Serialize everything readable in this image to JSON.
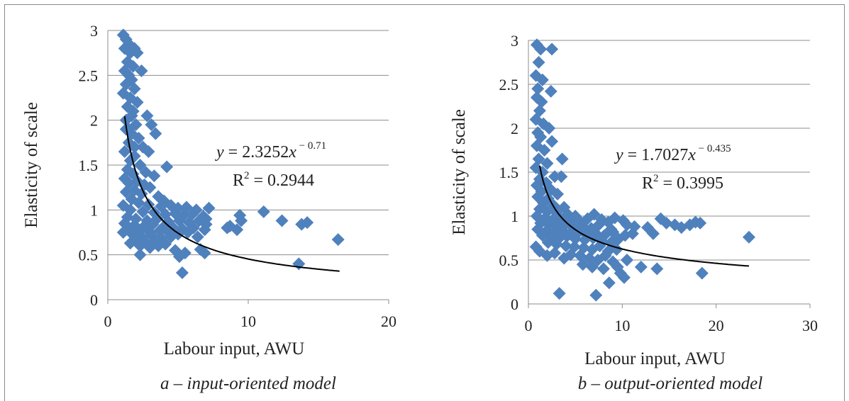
{
  "chart_data": [
    {
      "type": "scatter",
      "caption": "a – input-oriented model",
      "xlabel": "Labour input, AWU",
      "ylabel": "Elasticity of scale",
      "xlim": [
        0,
        20
      ],
      "ylim": [
        0,
        3
      ],
      "xticks": [
        "0",
        "10",
        "20"
      ],
      "yticks": [
        "0",
        "0.5",
        "1",
        "1.5",
        "2",
        "2.5",
        "3"
      ],
      "grid": "horizontal",
      "marker_color": "#4f81bd",
      "trendline": {
        "type": "power",
        "coefficient": 2.3252,
        "exponent": -0.71,
        "x_range": [
          1.2,
          16.5
        ],
        "equation_text": "y = 2.3252x",
        "equation_exponent": "− 0.71",
        "r2_text": "R",
        "r2_value": " = 0.2944"
      },
      "points": [
        [
          1.1,
          2.95
        ],
        [
          1.3,
          2.9
        ],
        [
          1.5,
          2.85
        ],
        [
          1.2,
          2.8
        ],
        [
          1.6,
          2.75
        ],
        [
          1.9,
          2.8
        ],
        [
          2.1,
          2.75
        ],
        [
          1.4,
          2.65
        ],
        [
          1.8,
          2.6
        ],
        [
          1.2,
          2.55
        ],
        [
          1.5,
          2.5
        ],
        [
          2.4,
          2.55
        ],
        [
          1.7,
          2.45
        ],
        [
          1.3,
          2.4
        ],
        [
          1.9,
          2.35
        ],
        [
          1.1,
          2.3
        ],
        [
          1.6,
          2.25
        ],
        [
          2.1,
          2.2
        ],
        [
          1.4,
          2.15
        ],
        [
          1.8,
          2.1
        ],
        [
          2.8,
          2.05
        ],
        [
          3.1,
          1.95
        ],
        [
          3.4,
          1.85
        ],
        [
          1.3,
          1.9
        ],
        [
          1.7,
          1.85
        ],
        [
          2.2,
          1.8
        ],
        [
          1.5,
          1.75
        ],
        [
          2.5,
          1.7
        ],
        [
          1.2,
          1.65
        ],
        [
          1.9,
          1.6
        ],
        [
          2.9,
          1.65
        ],
        [
          1.6,
          1.55
        ],
        [
          2.3,
          1.5
        ],
        [
          4.2,
          1.48
        ],
        [
          1.4,
          1.45
        ],
        [
          2.7,
          1.42
        ],
        [
          1.8,
          1.4
        ],
        [
          3.3,
          1.38
        ],
        [
          1.2,
          1.35
        ],
        [
          2.1,
          1.32
        ],
        [
          1.5,
          1.3
        ],
        [
          2.6,
          1.28
        ],
        [
          3.0,
          1.25
        ],
        [
          1.9,
          1.22
        ],
        [
          1.3,
          1.2
        ],
        [
          2.4,
          1.18
        ],
        [
          3.6,
          1.15
        ],
        [
          1.7,
          1.12
        ],
        [
          4.0,
          1.1
        ],
        [
          2.2,
          1.08
        ],
        [
          1.1,
          1.05
        ],
        [
          2.9,
          1.06
        ],
        [
          3.8,
          1.04
        ],
        [
          4.5,
          1.05
        ],
        [
          5.0,
          1.02
        ],
        [
          5.6,
          1.03
        ],
        [
          6.3,
          1.0
        ],
        [
          7.2,
          1.02
        ],
        [
          1.6,
          1.0
        ],
        [
          2.5,
          0.98
        ],
        [
          3.3,
          0.97
        ],
        [
          4.1,
          0.95
        ],
        [
          4.8,
          0.96
        ],
        [
          5.4,
          0.94
        ],
        [
          6.0,
          0.95
        ],
        [
          6.8,
          0.93
        ],
        [
          1.4,
          0.92
        ],
        [
          2.0,
          0.9
        ],
        [
          2.8,
          0.88
        ],
        [
          3.5,
          0.9
        ],
        [
          4.3,
          0.87
        ],
        [
          5.1,
          0.88
        ],
        [
          5.8,
          0.86
        ],
        [
          6.5,
          0.88
        ],
        [
          7.0,
          0.84
        ],
        [
          1.2,
          0.85
        ],
        [
          1.9,
          0.83
        ],
        [
          2.6,
          0.82
        ],
        [
          3.2,
          0.84
        ],
        [
          3.9,
          0.8
        ],
        [
          4.6,
          0.81
        ],
        [
          5.3,
          0.79
        ],
        [
          6.1,
          0.8
        ],
        [
          6.9,
          0.78
        ],
        [
          1.5,
          0.78
        ],
        [
          2.2,
          0.76
        ],
        [
          3.0,
          0.75
        ],
        [
          3.7,
          0.77
        ],
        [
          4.4,
          0.74
        ],
        [
          5.0,
          0.73
        ],
        [
          5.7,
          0.75
        ],
        [
          1.1,
          0.75
        ],
        [
          1.8,
          0.72
        ],
        [
          2.4,
          0.7
        ],
        [
          3.1,
          0.72
        ],
        [
          3.8,
          0.69
        ],
        [
          4.5,
          0.7
        ],
        [
          2.0,
          0.66
        ],
        [
          2.7,
          0.64
        ],
        [
          3.4,
          0.65
        ],
        [
          4.1,
          0.62
        ],
        [
          1.6,
          0.63
        ],
        [
          2.3,
          0.6
        ],
        [
          3.0,
          0.58
        ],
        [
          3.6,
          0.6
        ],
        [
          4.8,
          0.55
        ],
        [
          5.5,
          0.52
        ],
        [
          6.6,
          0.56
        ],
        [
          2.3,
          0.5
        ],
        [
          5.1,
          0.48
        ],
        [
          6.9,
          0.52
        ],
        [
          8.7,
          0.82
        ],
        [
          9.4,
          0.94
        ],
        [
          9.2,
          0.78
        ],
        [
          9.5,
          0.88
        ],
        [
          11.1,
          0.98
        ],
        [
          12.4,
          0.88
        ],
        [
          13.8,
          0.84
        ],
        [
          14.2,
          0.86
        ],
        [
          13.6,
          0.4
        ],
        [
          16.4,
          0.67
        ],
        [
          5.3,
          0.3
        ],
        [
          7.0,
          0.9
        ],
        [
          6.4,
          0.7
        ],
        [
          8.5,
          0.8
        ],
        [
          1.3,
          2.0
        ],
        [
          1.7,
          2.05
        ],
        [
          2.0,
          1.95
        ],
        [
          1.5,
          1.9
        ],
        [
          1.9,
          1.7
        ]
      ]
    },
    {
      "type": "scatter",
      "caption": "b – output-oriented model",
      "xlabel": "Labour input, AWU",
      "ylabel": "Elasticity of scale",
      "xlim": [
        0,
        30
      ],
      "ylim": [
        0,
        3
      ],
      "xticks": [
        "0",
        "10",
        "20",
        "30"
      ],
      "yticks": [
        "0",
        "0.5",
        "1",
        "1.5",
        "2",
        "2.5",
        "3"
      ],
      "grid": "horizontal",
      "marker_color": "#4f81bd",
      "trendline": {
        "type": "power",
        "coefficient": 1.7027,
        "exponent": -0.435,
        "x_range": [
          1.2,
          23.5
        ],
        "equation_text": "y = 1.7027x",
        "equation_exponent": "− 0.435",
        "r2_text": "R",
        "r2_value": " = 0.3995"
      },
      "points": [
        [
          0.9,
          2.95
        ],
        [
          1.3,
          2.9
        ],
        [
          2.5,
          2.9
        ],
        [
          1.1,
          2.75
        ],
        [
          0.8,
          2.6
        ],
        [
          1.5,
          2.55
        ],
        [
          1.0,
          2.45
        ],
        [
          2.4,
          2.42
        ],
        [
          0.9,
          2.35
        ],
        [
          1.4,
          2.3
        ],
        [
          1.2,
          2.2
        ],
        [
          0.8,
          2.1
        ],
        [
          1.6,
          2.05
        ],
        [
          2.2,
          2.0
        ],
        [
          1.0,
          1.95
        ],
        [
          1.3,
          1.9
        ],
        [
          2.5,
          1.85
        ],
        [
          0.9,
          1.8
        ],
        [
          1.7,
          1.75
        ],
        [
          3.6,
          1.65
        ],
        [
          1.1,
          1.65
        ],
        [
          2.0,
          1.6
        ],
        [
          0.8,
          1.55
        ],
        [
          1.5,
          1.5
        ],
        [
          2.8,
          1.45
        ],
        [
          1.2,
          1.42
        ],
        [
          3.5,
          1.45
        ],
        [
          1.9,
          1.38
        ],
        [
          0.9,
          1.35
        ],
        [
          2.4,
          1.3
        ],
        [
          1.4,
          1.28
        ],
        [
          3.1,
          1.25
        ],
        [
          1.0,
          1.22
        ],
        [
          2.1,
          1.2
        ],
        [
          1.6,
          1.15
        ],
        [
          2.7,
          1.12
        ],
        [
          3.8,
          1.1
        ],
        [
          1.2,
          1.08
        ],
        [
          2.0,
          1.05
        ],
        [
          3.0,
          1.04
        ],
        [
          4.2,
          1.02
        ],
        [
          5.0,
          1.0
        ],
        [
          0.9,
          1.0
        ],
        [
          1.8,
          0.98
        ],
        [
          2.6,
          0.96
        ],
        [
          3.4,
          0.97
        ],
        [
          4.5,
          0.95
        ],
        [
          5.5,
          0.94
        ],
        [
          6.3,
          0.97
        ],
        [
          7.0,
          1.02
        ],
        [
          7.8,
          0.96
        ],
        [
          8.5,
          0.93
        ],
        [
          9.2,
          0.98
        ],
        [
          10.1,
          0.95
        ],
        [
          1.3,
          0.92
        ],
        [
          2.2,
          0.9
        ],
        [
          3.1,
          0.88
        ],
        [
          3.9,
          0.9
        ],
        [
          4.8,
          0.87
        ],
        [
          5.8,
          0.88
        ],
        [
          6.7,
          0.86
        ],
        [
          7.5,
          0.9
        ],
        [
          8.8,
          0.85
        ],
        [
          10.5,
          0.9
        ],
        [
          1.0,
          0.85
        ],
        [
          1.9,
          0.83
        ],
        [
          2.8,
          0.82
        ],
        [
          3.6,
          0.84
        ],
        [
          4.4,
          0.8
        ],
        [
          5.3,
          0.81
        ],
        [
          6.2,
          0.79
        ],
        [
          7.2,
          0.8
        ],
        [
          8.1,
          0.78
        ],
        [
          9.0,
          0.82
        ],
        [
          10.3,
          0.78
        ],
        [
          11.1,
          0.8
        ],
        [
          1.5,
          0.78
        ],
        [
          2.5,
          0.76
        ],
        [
          3.3,
          0.75
        ],
        [
          4.1,
          0.77
        ],
        [
          5.0,
          0.74
        ],
        [
          6.0,
          0.73
        ],
        [
          6.9,
          0.75
        ],
        [
          7.8,
          0.72
        ],
        [
          8.8,
          0.7
        ],
        [
          9.6,
          0.74
        ],
        [
          2.1,
          0.7
        ],
        [
          3.0,
          0.68
        ],
        [
          4.0,
          0.66
        ],
        [
          4.9,
          0.65
        ],
        [
          5.9,
          0.64
        ],
        [
          6.8,
          0.62
        ],
        [
          7.6,
          0.66
        ],
        [
          8.5,
          0.6
        ],
        [
          9.4,
          0.62
        ],
        [
          0.8,
          0.65
        ],
        [
          1.2,
          0.6
        ],
        [
          2.8,
          0.58
        ],
        [
          4.5,
          0.56
        ],
        [
          5.5,
          0.55
        ],
        [
          6.5,
          0.52
        ],
        [
          7.4,
          0.5
        ],
        [
          8.2,
          0.55
        ],
        [
          9.0,
          0.48
        ],
        [
          2.0,
          0.55
        ],
        [
          3.8,
          0.52
        ],
        [
          5.8,
          0.45
        ],
        [
          6.8,
          0.42
        ],
        [
          8.0,
          0.4
        ],
        [
          9.5,
          0.42
        ],
        [
          10.5,
          0.5
        ],
        [
          12.0,
          0.42
        ],
        [
          13.7,
          0.4
        ],
        [
          9.8,
          0.35
        ],
        [
          10.2,
          0.3
        ],
        [
          13.3,
          0.8
        ],
        [
          14.1,
          0.97
        ],
        [
          14.7,
          0.92
        ],
        [
          15.6,
          0.9
        ],
        [
          16.3,
          0.87
        ],
        [
          17.2,
          0.9
        ],
        [
          17.8,
          0.93
        ],
        [
          18.3,
          0.92
        ],
        [
          18.5,
          0.35
        ],
        [
          23.5,
          0.76
        ],
        [
          8.6,
          0.24
        ],
        [
          3.3,
          0.12
        ],
        [
          7.2,
          0.1
        ],
        [
          11.3,
          0.88
        ],
        [
          12.7,
          0.87
        ]
      ]
    }
  ]
}
